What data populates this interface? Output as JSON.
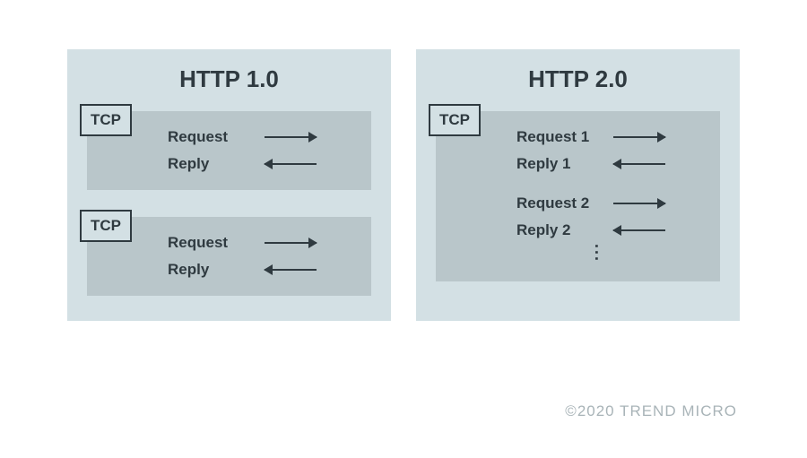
{
  "colors": {
    "page_bg": "#ffffff",
    "panel_bg": "#d3e0e4",
    "block_bg": "#b9c6ca",
    "text": "#2f3a40",
    "arrow": "#2f3a40",
    "tcp_border": "#2f3a40",
    "copyright": "#a9b4b8"
  },
  "typography": {
    "title_fontsize": 26,
    "label_fontsize": 17,
    "tcp_fontsize": 17,
    "copyright_fontsize": 17
  },
  "layout": {
    "panel_gap": 28,
    "arrow_length": 58,
    "arrow_thickness": 2
  },
  "left": {
    "title": "HTTP 1.0",
    "connections": [
      {
        "tcp_label": "TCP",
        "rows": [
          {
            "label": "Request",
            "dir": "right"
          },
          {
            "label": "Reply",
            "dir": "left"
          }
        ]
      },
      {
        "tcp_label": "TCP",
        "rows": [
          {
            "label": "Request",
            "dir": "right"
          },
          {
            "label": "Reply",
            "dir": "left"
          }
        ]
      }
    ]
  },
  "right": {
    "title": "HTTP 2.0",
    "connections": [
      {
        "tcp_label": "TCP",
        "rows": [
          {
            "label": "Request 1",
            "dir": "right"
          },
          {
            "label": "Reply 1",
            "dir": "left"
          },
          {
            "gap": true
          },
          {
            "label": "Request 2",
            "dir": "right"
          },
          {
            "label": "Reply 2",
            "dir": "left"
          }
        ],
        "ellipsis": "..."
      }
    ]
  },
  "copyright": "©2020 TREND MICRO"
}
